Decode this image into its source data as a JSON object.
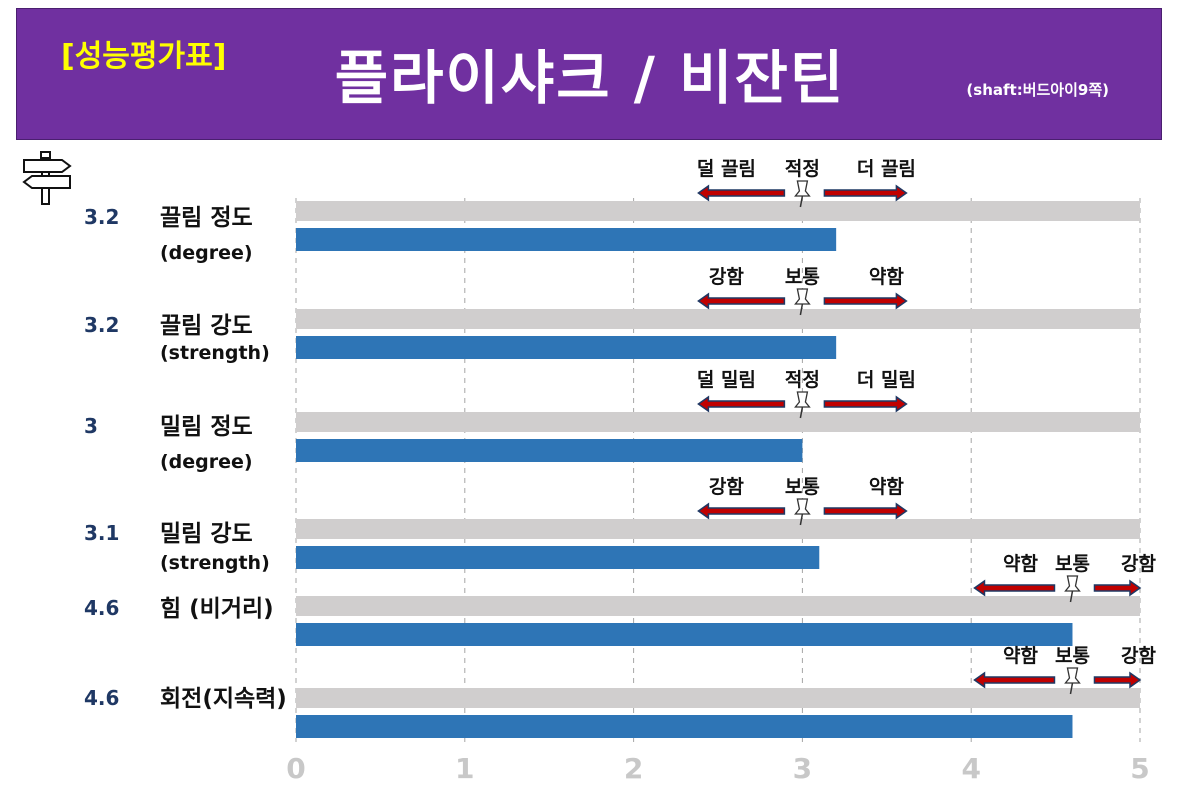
{
  "header": {
    "badge": "[성능평가표]",
    "title": "플라이샤크 / 비잔틴",
    "shaft": "(shaft:버드아이9쪽)"
  },
  "colors": {
    "header_bg": "#7030a0",
    "badge_text": "#ffff00",
    "bar_value": "#2e75b6",
    "bar_track": "#d0cece",
    "arrow_fill": "#c00000",
    "arrow_outline": "#1f3864",
    "score_text": "#1f3864"
  },
  "icons": {
    "signpost": "signpost-icon",
    "pin": "pushpin-icon"
  },
  "chart_data": {
    "type": "bar",
    "orientation": "horizontal",
    "xlim": [
      0,
      5
    ],
    "x_ticks": [
      "0",
      "1",
      "2",
      "3",
      "4",
      "5"
    ],
    "grid": "vertical dashed",
    "categories": [
      {
        "score": "3.2",
        "label": "끌림 정도",
        "sub": "(degree)",
        "value": 3.2,
        "indicator": {
          "left": "덜 끌림",
          "mid": "적정",
          "right": "더 끌림",
          "pin_value": 3.0
        }
      },
      {
        "score": "3.2",
        "label": "끌림 강도",
        "sub": "(strength)",
        "value": 3.2,
        "indicator": {
          "left": "강함",
          "mid": "보통",
          "right": "약함",
          "pin_value": 3.0
        }
      },
      {
        "score": "3",
        "label": "밀림 정도",
        "sub": "(degree)",
        "value": 3.0,
        "indicator": {
          "left": "덜 밀림",
          "mid": "적정",
          "right": "더 밀림",
          "pin_value": 3.0
        }
      },
      {
        "score": "3.1",
        "label": "밀림 강도",
        "sub": "(strength)",
        "value": 3.1,
        "indicator": {
          "left": "강함",
          "mid": "보통",
          "right": "약함",
          "pin_value": 3.0
        }
      },
      {
        "score": "4.6",
        "label": "힘 (비거리)",
        "sub": "",
        "value": 4.6,
        "indicator": {
          "left": "약함",
          "mid": "보통",
          "right": "강함",
          "pin_value": 4.6
        }
      },
      {
        "score": "4.6",
        "label": "회전(지속력)",
        "sub": "",
        "value": 4.6,
        "indicator": {
          "left": "약함",
          "mid": "보통",
          "right": "강함",
          "pin_value": 4.6
        }
      }
    ]
  }
}
